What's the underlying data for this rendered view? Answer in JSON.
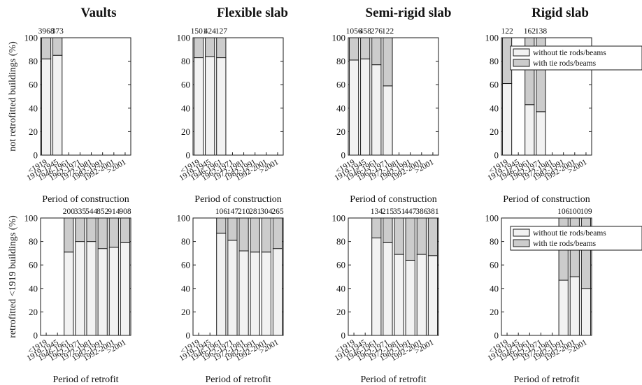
{
  "columns": [
    "Vaults",
    "Flexible slab",
    "Semi-rigid slab",
    "Rigid slab"
  ],
  "rows": [
    {
      "ylabel": "not retrofitted buildings (%)",
      "xlabel": "Period of construction"
    },
    {
      "ylabel": "retrofitted <1919 buildings (%)",
      "xlabel": "Period of retrofit"
    }
  ],
  "colors": {
    "without": "#f2f2f2",
    "with": "#cccccc",
    "edge": "#1a1a1a"
  },
  "legend": {
    "without": "without tie rods/beams",
    "with": "with tie rods/beams"
  },
  "chart_data": [
    {
      "type": "bar",
      "stacked": true,
      "row": 1,
      "title": "Vaults",
      "xlabel": "Period of construction",
      "ylabel": "not retrofitted buildings (%)",
      "ylim": [
        0,
        100
      ],
      "yticks": [
        0,
        20,
        40,
        60,
        80,
        100
      ],
      "categories": [
        "<1919",
        "1919-1945",
        "1946-1961",
        "1962-1971",
        "1972-1981",
        "1982-1991",
        "1992-2001",
        ">2001"
      ],
      "series": [
        {
          "name": "without tie rods/beams",
          "values": [
            82,
            85,
            null,
            null,
            null,
            null,
            null,
            null
          ]
        },
        {
          "name": "with tie rods/beams",
          "values": [
            18,
            15,
            null,
            null,
            null,
            null,
            null,
            null
          ]
        }
      ],
      "counts": [
        "3968",
        "373",
        "",
        "",
        "",
        "",
        "",
        ""
      ],
      "legend": false
    },
    {
      "type": "bar",
      "stacked": true,
      "row": 1,
      "title": "Flexible slab",
      "xlabel": "Period of construction",
      "ylim": [
        0,
        100
      ],
      "yticks": [
        0,
        20,
        40,
        60,
        80,
        100
      ],
      "categories": [
        "<1919",
        "1919-1945",
        "1946-1961",
        "1962-1971",
        "1972-1981",
        "1982-1991",
        "1992-2001",
        ">2001"
      ],
      "series": [
        {
          "name": "without tie rods/beams",
          "values": [
            83,
            84,
            83,
            null,
            null,
            null,
            null,
            null
          ]
        },
        {
          "name": "with tie rods/beams",
          "values": [
            17,
            16,
            17,
            null,
            null,
            null,
            null,
            null
          ]
        }
      ],
      "counts": [
        "1501",
        "424",
        "127",
        "",
        "",
        "",
        "",
        ""
      ],
      "legend": false
    },
    {
      "type": "bar",
      "stacked": true,
      "row": 1,
      "title": "Semi-rigid slab",
      "xlabel": "Period of construction",
      "ylim": [
        0,
        100
      ],
      "yticks": [
        0,
        20,
        40,
        60,
        80,
        100
      ],
      "categories": [
        "<1919",
        "1919-1945",
        "1946-1961",
        "1962-1971",
        "1972-1981",
        "1982-1991",
        "1992-2001",
        ">2001"
      ],
      "series": [
        {
          "name": "without tie rods/beams",
          "values": [
            81,
            82,
            77,
            59,
            null,
            null,
            null,
            null
          ]
        },
        {
          "name": "with tie rods/beams",
          "values": [
            19,
            18,
            23,
            41,
            null,
            null,
            null,
            null
          ]
        }
      ],
      "counts": [
        "1056",
        "458",
        "276",
        "122",
        "",
        "",
        "",
        ""
      ],
      "legend": false
    },
    {
      "type": "bar",
      "stacked": true,
      "row": 1,
      "title": "Rigid slab",
      "xlabel": "Period of construction",
      "ylim": [
        0,
        100
      ],
      "yticks": [
        0,
        20,
        40,
        60,
        80,
        100
      ],
      "categories": [
        "<1919",
        "1919-1945",
        "1946-1961",
        "1962-1971",
        "1972-1981",
        "1982-1991",
        "1992-2001",
        ">2001"
      ],
      "series": [
        {
          "name": "without tie rods/beams",
          "values": [
            61,
            null,
            43,
            37,
            null,
            null,
            null,
            null
          ]
        },
        {
          "name": "with tie rods/beams",
          "values": [
            39,
            null,
            57,
            63,
            null,
            null,
            null,
            null
          ]
        }
      ],
      "counts": [
        "122",
        "",
        "162",
        "138",
        "",
        "",
        "",
        ""
      ],
      "legend": "top-right"
    },
    {
      "type": "bar",
      "stacked": true,
      "row": 2,
      "title": "",
      "xlabel": "Period of retrofit",
      "ylabel": "retrofitted <1919 buildings (%)",
      "ylim": [
        0,
        100
      ],
      "yticks": [
        0,
        20,
        40,
        60,
        80,
        100
      ],
      "categories": [
        "<1919",
        "1919-1945",
        "1946-1961",
        "1962-1971",
        "1972-1981",
        "1982-1991",
        "1992-2001",
        ">2001"
      ],
      "series": [
        {
          "name": "without tie rods/beams",
          "values": [
            null,
            null,
            71,
            80,
            80,
            74,
            75,
            79
          ]
        },
        {
          "name": "with tie rods/beams",
          "values": [
            null,
            null,
            29,
            20,
            20,
            26,
            25,
            21
          ]
        }
      ],
      "counts": [
        "",
        "",
        "200",
        "335",
        "544",
        "852",
        "914",
        "908"
      ],
      "legend": false
    },
    {
      "type": "bar",
      "stacked": true,
      "row": 2,
      "title": "",
      "xlabel": "Period of retrofit",
      "ylim": [
        0,
        100
      ],
      "yticks": [
        0,
        20,
        40,
        60,
        80,
        100
      ],
      "categories": [
        "<1919",
        "1919-1945",
        "1946-1961",
        "1962-1971",
        "1972-1981",
        "1982-1991",
        "1992-2001",
        ">2001"
      ],
      "series": [
        {
          "name": "without tie rods/beams",
          "values": [
            null,
            null,
            87,
            81,
            72,
            71,
            71,
            74
          ]
        },
        {
          "name": "with tie rods/beams",
          "values": [
            null,
            null,
            13,
            19,
            28,
            29,
            29,
            26
          ]
        }
      ],
      "counts": [
        "",
        "",
        "106",
        "147",
        "210",
        "281",
        "304",
        "265"
      ],
      "legend": false
    },
    {
      "type": "bar",
      "stacked": true,
      "row": 2,
      "title": "",
      "xlabel": "Period of retrofit",
      "ylim": [
        0,
        100
      ],
      "yticks": [
        0,
        20,
        40,
        60,
        80,
        100
      ],
      "categories": [
        "<1919",
        "1919-1945",
        "1946-1961",
        "1962-1971",
        "1972-1981",
        "1982-1991",
        "1992-2001",
        ">2001"
      ],
      "series": [
        {
          "name": "without tie rods/beams",
          "values": [
            null,
            null,
            83,
            79,
            69,
            64,
            69,
            68
          ]
        },
        {
          "name": "with tie rods/beams",
          "values": [
            null,
            null,
            17,
            21,
            31,
            36,
            31,
            32
          ]
        }
      ],
      "counts": [
        "",
        "",
        "134",
        "215",
        "351",
        "447",
        "386",
        "381"
      ],
      "legend": false
    },
    {
      "type": "bar",
      "stacked": true,
      "row": 2,
      "title": "",
      "xlabel": "Period of retrofit",
      "ylim": [
        0,
        100
      ],
      "yticks": [
        0,
        20,
        40,
        60,
        80,
        100
      ],
      "categories": [
        "<1919",
        "1919-1945",
        "1946-1961",
        "1962-1971",
        "1972-1981",
        "1982-1991",
        "1992-2001",
        ">2001"
      ],
      "series": [
        {
          "name": "without tie rods/beams",
          "values": [
            null,
            null,
            null,
            null,
            null,
            47,
            50,
            40
          ]
        },
        {
          "name": "with tie rods/beams",
          "values": [
            null,
            null,
            null,
            null,
            null,
            53,
            50,
            60
          ]
        }
      ],
      "counts": [
        "",
        "",
        "",
        "",
        "",
        "106",
        "100",
        "109"
      ],
      "legend": "top-right"
    }
  ]
}
